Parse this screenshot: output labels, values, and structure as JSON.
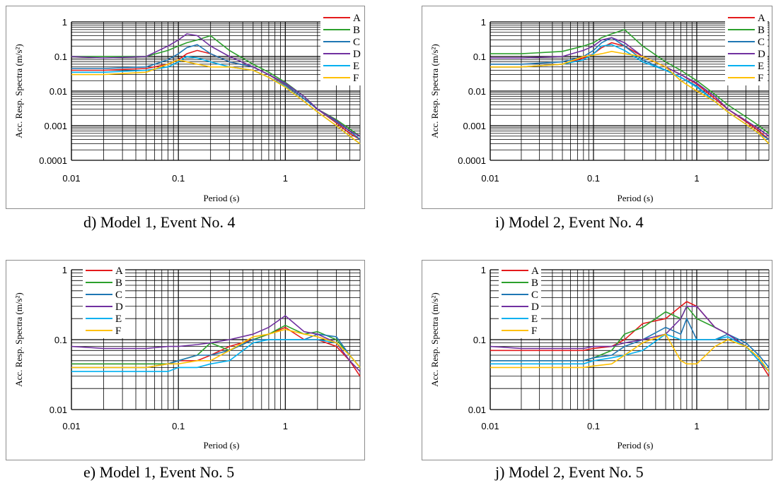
{
  "captions": [
    "d) Model 1, Event No. 4",
    "i) Model 2, Event No. 4",
    "e) Model 1, Event No. 5",
    "j) Model 2, Event No. 5"
  ],
  "chart_data": [
    {
      "type": "line",
      "panel": "d",
      "caption": "d) Model 1, Event No. 4",
      "xlabel": "Period (s)",
      "ylabel": "Acc. Resp. Spectra  (m/s²)",
      "xscale": "log",
      "yscale": "log",
      "xlim": [
        0.01,
        5
      ],
      "ylim": [
        0.0001,
        1
      ],
      "xticks": [
        "0.01",
        "0.1",
        "1"
      ],
      "yticks": [
        "0.0001",
        "0.001",
        "0.01",
        "0.1",
        "1"
      ],
      "grid": true,
      "legend": "top-right",
      "series": [
        {
          "name": "A",
          "color": "#e41a1c",
          "x": [
            0.01,
            0.02,
            0.05,
            0.08,
            0.1,
            0.12,
            0.15,
            0.2,
            0.3,
            0.5,
            0.7,
            1,
            1.5,
            2,
            3,
            4,
            5
          ],
          "y": [
            0.04,
            0.04,
            0.045,
            0.06,
            0.08,
            0.12,
            0.15,
            0.12,
            0.07,
            0.05,
            0.03,
            0.015,
            0.006,
            0.003,
            0.0012,
            0.0006,
            0.0004
          ]
        },
        {
          "name": "B",
          "color": "#2ca02c",
          "x": [
            0.01,
            0.02,
            0.05,
            0.08,
            0.1,
            0.12,
            0.15,
            0.2,
            0.3,
            0.5,
            0.7,
            1,
            1.5,
            2,
            3,
            4,
            5
          ],
          "y": [
            0.1,
            0.1,
            0.1,
            0.15,
            0.2,
            0.25,
            0.3,
            0.4,
            0.15,
            0.06,
            0.035,
            0.018,
            0.007,
            0.003,
            0.0015,
            0.0008,
            0.0005
          ]
        },
        {
          "name": "C",
          "color": "#1f77b4",
          "x": [
            0.01,
            0.02,
            0.05,
            0.08,
            0.1,
            0.12,
            0.15,
            0.2,
            0.3,
            0.5,
            0.7,
            1,
            1.5,
            2,
            3,
            4,
            5
          ],
          "y": [
            0.045,
            0.045,
            0.05,
            0.08,
            0.12,
            0.18,
            0.22,
            0.12,
            0.07,
            0.05,
            0.03,
            0.016,
            0.006,
            0.003,
            0.0013,
            0.0007,
            0.0004
          ]
        },
        {
          "name": "D",
          "color": "#7030a0",
          "x": [
            0.01,
            0.02,
            0.05,
            0.08,
            0.1,
            0.12,
            0.15,
            0.2,
            0.3,
            0.5,
            0.7,
            1,
            1.5,
            2,
            3,
            4,
            5
          ],
          "y": [
            0.1,
            0.09,
            0.1,
            0.2,
            0.3,
            0.45,
            0.4,
            0.2,
            0.1,
            0.05,
            0.03,
            0.017,
            0.007,
            0.003,
            0.0014,
            0.0007,
            0.0005
          ]
        },
        {
          "name": "E",
          "color": "#00b0f0",
          "x": [
            0.01,
            0.02,
            0.05,
            0.08,
            0.1,
            0.12,
            0.15,
            0.2,
            0.3,
            0.5,
            0.7,
            1,
            1.5,
            2,
            3,
            4,
            5
          ],
          "y": [
            0.035,
            0.035,
            0.04,
            0.05,
            0.07,
            0.1,
            0.09,
            0.07,
            0.05,
            0.04,
            0.025,
            0.014,
            0.005,
            0.0025,
            0.001,
            0.0005,
            0.0003
          ]
        },
        {
          "name": "F",
          "color": "#ffc000",
          "x": [
            0.01,
            0.02,
            0.05,
            0.08,
            0.1,
            0.12,
            0.15,
            0.2,
            0.3,
            0.5,
            0.7,
            1,
            1.5,
            2,
            3,
            4,
            5
          ],
          "y": [
            0.03,
            0.03,
            0.035,
            0.06,
            0.08,
            0.07,
            0.06,
            0.05,
            0.05,
            0.04,
            0.025,
            0.013,
            0.005,
            0.0025,
            0.001,
            0.0005,
            0.0003
          ]
        }
      ]
    },
    {
      "type": "line",
      "panel": "i",
      "caption": "i) Model 2, Event No. 4",
      "xlabel": "Period (s)",
      "ylabel": "Acc. Resp. Spectra  (m/s²)",
      "xscale": "log",
      "yscale": "log",
      "xlim": [
        0.01,
        5
      ],
      "ylim": [
        0.0001,
        1
      ],
      "xticks": [
        "0.01",
        "0.1",
        "1"
      ],
      "yticks": [
        "0.0001",
        "0.001",
        "0.01",
        "0.1",
        "1"
      ],
      "grid": true,
      "legend": "top-right",
      "series": [
        {
          "name": "A",
          "color": "#e41a1c",
          "x": [
            0.01,
            0.02,
            0.05,
            0.08,
            0.1,
            0.12,
            0.15,
            0.2,
            0.3,
            0.5,
            0.7,
            1,
            1.5,
            2,
            3,
            4,
            5
          ],
          "y": [
            0.05,
            0.05,
            0.06,
            0.09,
            0.12,
            0.18,
            0.25,
            0.2,
            0.1,
            0.05,
            0.03,
            0.016,
            0.006,
            0.003,
            0.0013,
            0.0007,
            0.0004
          ]
        },
        {
          "name": "B",
          "color": "#2ca02c",
          "x": [
            0.01,
            0.02,
            0.05,
            0.08,
            0.1,
            0.12,
            0.15,
            0.2,
            0.3,
            0.5,
            0.7,
            1,
            1.5,
            2,
            3,
            4,
            5
          ],
          "y": [
            0.12,
            0.12,
            0.14,
            0.2,
            0.25,
            0.35,
            0.45,
            0.6,
            0.2,
            0.07,
            0.04,
            0.02,
            0.008,
            0.004,
            0.0018,
            0.001,
            0.0006
          ]
        },
        {
          "name": "C",
          "color": "#1f77b4",
          "x": [
            0.01,
            0.02,
            0.05,
            0.08,
            0.1,
            0.12,
            0.15,
            0.2,
            0.3,
            0.5,
            0.7,
            1,
            1.5,
            2,
            3,
            4,
            5
          ],
          "y": [
            0.06,
            0.06,
            0.07,
            0.1,
            0.15,
            0.25,
            0.35,
            0.2,
            0.08,
            0.04,
            0.025,
            0.014,
            0.005,
            0.0025,
            0.0011,
            0.0006,
            0.0004
          ]
        },
        {
          "name": "D",
          "color": "#7030a0",
          "x": [
            0.01,
            0.02,
            0.05,
            0.08,
            0.1,
            0.12,
            0.15,
            0.2,
            0.3,
            0.5,
            0.7,
            1,
            1.5,
            2,
            3,
            4,
            5
          ],
          "y": [
            0.09,
            0.09,
            0.1,
            0.15,
            0.2,
            0.3,
            0.35,
            0.25,
            0.1,
            0.05,
            0.03,
            0.017,
            0.007,
            0.003,
            0.0014,
            0.0008,
            0.0005
          ]
        },
        {
          "name": "E",
          "color": "#00b0f0",
          "x": [
            0.01,
            0.02,
            0.05,
            0.08,
            0.1,
            0.12,
            0.15,
            0.2,
            0.3,
            0.5,
            0.7,
            1,
            1.5,
            2,
            3,
            4,
            5
          ],
          "y": [
            0.05,
            0.05,
            0.06,
            0.08,
            0.12,
            0.2,
            0.22,
            0.15,
            0.07,
            0.04,
            0.025,
            0.013,
            0.005,
            0.0025,
            0.0011,
            0.0006,
            0.0003
          ]
        },
        {
          "name": "F",
          "color": "#ffc000",
          "x": [
            0.01,
            0.02,
            0.05,
            0.08,
            0.1,
            0.12,
            0.15,
            0.2,
            0.3,
            0.5,
            0.7,
            1,
            1.5,
            2,
            3,
            4,
            5
          ],
          "y": [
            0.05,
            0.05,
            0.06,
            0.1,
            0.11,
            0.12,
            0.14,
            0.12,
            0.1,
            0.05,
            0.02,
            0.01,
            0.005,
            0.0025,
            0.0011,
            0.0006,
            0.0003
          ]
        }
      ]
    },
    {
      "type": "line",
      "panel": "e",
      "caption": "e) Model 1, Event No. 5",
      "xlabel": "Period (s)",
      "ylabel": "Acc. Resp. Spectra  (m/s²)",
      "xscale": "log",
      "yscale": "log",
      "xlim": [
        0.01,
        5
      ],
      "ylim": [
        0.01,
        1
      ],
      "xticks": [
        "0.01",
        "0.1",
        "1"
      ],
      "yticks": [
        "0.01",
        "0.1",
        "1"
      ],
      "grid": true,
      "legend": "top-left",
      "series": [
        {
          "name": "A",
          "color": "#e41a1c",
          "x": [
            0.01,
            0.02,
            0.05,
            0.08,
            0.1,
            0.15,
            0.2,
            0.3,
            0.5,
            0.7,
            1,
            1.5,
            2,
            3,
            4,
            5
          ],
          "y": [
            0.045,
            0.045,
            0.045,
            0.045,
            0.05,
            0.05,
            0.06,
            0.08,
            0.1,
            0.12,
            0.15,
            0.1,
            0.1,
            0.08,
            0.05,
            0.03
          ]
        },
        {
          "name": "B",
          "color": "#2ca02c",
          "x": [
            0.01,
            0.02,
            0.05,
            0.08,
            0.1,
            0.15,
            0.2,
            0.3,
            0.5,
            0.7,
            1,
            1.5,
            2,
            3,
            4,
            5
          ],
          "y": [
            0.045,
            0.045,
            0.045,
            0.045,
            0.05,
            0.06,
            0.09,
            0.07,
            0.1,
            0.12,
            0.16,
            0.12,
            0.13,
            0.1,
            0.06,
            0.04
          ]
        },
        {
          "name": "C",
          "color": "#1f77b4",
          "x": [
            0.01,
            0.02,
            0.05,
            0.08,
            0.1,
            0.15,
            0.2,
            0.3,
            0.5,
            0.7,
            1,
            1.5,
            2,
            3,
            4,
            5
          ],
          "y": [
            0.04,
            0.04,
            0.04,
            0.045,
            0.05,
            0.06,
            0.06,
            0.07,
            0.1,
            0.1,
            0.1,
            0.1,
            0.12,
            0.11,
            0.06,
            0.04
          ]
        },
        {
          "name": "D",
          "color": "#7030a0",
          "x": [
            0.01,
            0.02,
            0.05,
            0.08,
            0.1,
            0.15,
            0.2,
            0.3,
            0.5,
            0.7,
            1,
            1.5,
            2,
            3,
            4,
            5
          ],
          "y": [
            0.08,
            0.075,
            0.075,
            0.08,
            0.08,
            0.085,
            0.09,
            0.1,
            0.12,
            0.15,
            0.22,
            0.13,
            0.12,
            0.09,
            0.05,
            0.035
          ]
        },
        {
          "name": "E",
          "color": "#00b0f0",
          "x": [
            0.01,
            0.02,
            0.05,
            0.08,
            0.1,
            0.15,
            0.2,
            0.3,
            0.5,
            0.7,
            1,
            1.5,
            2,
            3,
            4,
            5
          ],
          "y": [
            0.035,
            0.035,
            0.035,
            0.035,
            0.04,
            0.04,
            0.045,
            0.05,
            0.09,
            0.1,
            0.1,
            0.1,
            0.1,
            0.09,
            0.06,
            0.04
          ]
        },
        {
          "name": "F",
          "color": "#ffc000",
          "x": [
            0.01,
            0.02,
            0.05,
            0.08,
            0.1,
            0.15,
            0.2,
            0.3,
            0.5,
            0.7,
            1,
            1.5,
            2,
            3,
            4,
            5
          ],
          "y": [
            0.04,
            0.04,
            0.04,
            0.045,
            0.045,
            0.05,
            0.05,
            0.07,
            0.11,
            0.12,
            0.14,
            0.12,
            0.11,
            0.09,
            0.06,
            0.04
          ]
        }
      ]
    },
    {
      "type": "line",
      "panel": "j",
      "caption": "j) Model 2, Event No. 5",
      "xlabel": "Period (s)",
      "ylabel": "Acc. Resp. Spectra  (m/s²)",
      "xscale": "log",
      "yscale": "log",
      "xlim": [
        0.01,
        5
      ],
      "ylim": [
        0.01,
        1
      ],
      "xticks": [
        "0.01",
        "0.1",
        "1"
      ],
      "yticks": [
        "0.01",
        "0.1",
        "1"
      ],
      "grid": true,
      "legend": "top-left",
      "series": [
        {
          "name": "A",
          "color": "#e41a1c",
          "x": [
            0.01,
            0.02,
            0.05,
            0.08,
            0.1,
            0.15,
            0.2,
            0.3,
            0.5,
            0.7,
            0.8,
            1,
            1.5,
            2,
            3,
            4,
            5
          ],
          "y": [
            0.07,
            0.07,
            0.07,
            0.07,
            0.075,
            0.08,
            0.1,
            0.17,
            0.2,
            0.3,
            0.35,
            0.3,
            0.15,
            0.12,
            0.08,
            0.05,
            0.03
          ]
        },
        {
          "name": "B",
          "color": "#2ca02c",
          "x": [
            0.01,
            0.02,
            0.05,
            0.08,
            0.1,
            0.15,
            0.2,
            0.3,
            0.5,
            0.7,
            0.8,
            1,
            1.5,
            2,
            3,
            4,
            5
          ],
          "y": [
            0.05,
            0.05,
            0.05,
            0.05,
            0.055,
            0.07,
            0.12,
            0.15,
            0.25,
            0.2,
            0.3,
            0.2,
            0.15,
            0.12,
            0.08,
            0.05,
            0.035
          ]
        },
        {
          "name": "C",
          "color": "#1f77b4",
          "x": [
            0.01,
            0.02,
            0.05,
            0.08,
            0.1,
            0.15,
            0.2,
            0.3,
            0.5,
            0.7,
            0.8,
            1,
            1.5,
            2,
            3,
            4,
            5
          ],
          "y": [
            0.05,
            0.05,
            0.05,
            0.05,
            0.055,
            0.06,
            0.08,
            0.1,
            0.15,
            0.12,
            0.2,
            0.1,
            0.1,
            0.12,
            0.09,
            0.06,
            0.04
          ]
        },
        {
          "name": "D",
          "color": "#7030a0",
          "x": [
            0.01,
            0.02,
            0.05,
            0.08,
            0.1,
            0.15,
            0.2,
            0.3,
            0.5,
            0.7,
            0.8,
            1,
            1.5,
            2,
            3,
            4,
            5
          ],
          "y": [
            0.08,
            0.075,
            0.075,
            0.075,
            0.08,
            0.08,
            0.09,
            0.1,
            0.12,
            0.2,
            0.3,
            0.3,
            0.15,
            0.12,
            0.08,
            0.05,
            0.035
          ]
        },
        {
          "name": "E",
          "color": "#00b0f0",
          "x": [
            0.01,
            0.02,
            0.05,
            0.08,
            0.1,
            0.15,
            0.2,
            0.3,
            0.5,
            0.7,
            0.8,
            1,
            1.5,
            2,
            3,
            4,
            5
          ],
          "y": [
            0.045,
            0.045,
            0.045,
            0.045,
            0.05,
            0.055,
            0.06,
            0.07,
            0.12,
            0.1,
            0.1,
            0.1,
            0.1,
            0.11,
            0.08,
            0.05,
            0.035
          ]
        },
        {
          "name": "F",
          "color": "#ffc000",
          "x": [
            0.01,
            0.02,
            0.05,
            0.08,
            0.1,
            0.15,
            0.2,
            0.3,
            0.5,
            0.7,
            0.8,
            1,
            1.5,
            2,
            3,
            4,
            5
          ],
          "y": [
            0.04,
            0.04,
            0.04,
            0.04,
            0.042,
            0.045,
            0.06,
            0.09,
            0.12,
            0.05,
            0.045,
            0.045,
            0.08,
            0.1,
            0.08,
            0.055,
            0.035
          ]
        }
      ]
    }
  ]
}
